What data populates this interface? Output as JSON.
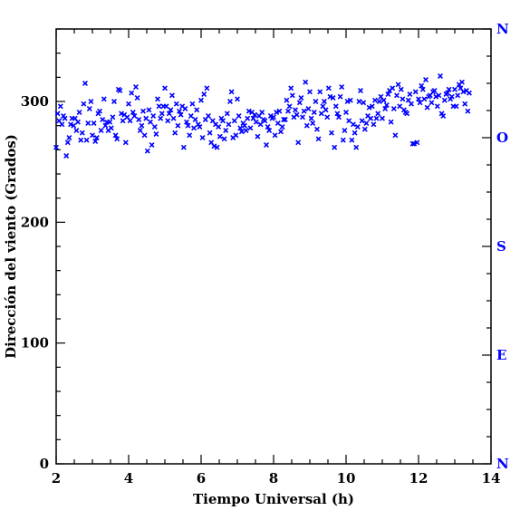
{
  "chart_data": {
    "type": "scatter",
    "xlabel": "Tiempo Universal (h)",
    "ylabel": "Dirección del viento (Grados)",
    "xlim": [
      2,
      14
    ],
    "ylim": [
      0,
      360
    ],
    "x_ticks": [
      2,
      4,
      6,
      8,
      10,
      12,
      14
    ],
    "y_ticks": [
      0,
      100,
      200,
      300
    ],
    "right_axis_labels": [
      {
        "label": "N",
        "value": 360
      },
      {
        "label": "O",
        "value": 270
      },
      {
        "label": "S",
        "value": 180
      },
      {
        "label": "E",
        "value": 90
      },
      {
        "label": "N",
        "value": 0
      }
    ],
    "marker": "x",
    "series_color": "#0000ff",
    "right_axis_color": "#0000ff",
    "points": [
      [
        2.0,
        262
      ],
      [
        2.04,
        290
      ],
      [
        2.08,
        284
      ],
      [
        2.12,
        296
      ],
      [
        2.16,
        281
      ],
      [
        2.2,
        288
      ],
      [
        2.24,
        286
      ],
      [
        2.28,
        255
      ],
      [
        2.32,
        266
      ],
      [
        2.36,
        270
      ],
      [
        2.4,
        281
      ],
      [
        2.44,
        286
      ],
      [
        2.48,
        280
      ],
      [
        2.52,
        286
      ],
      [
        2.56,
        276
      ],
      [
        2.6,
        283
      ],
      [
        2.64,
        291
      ],
      [
        2.68,
        268
      ],
      [
        2.72,
        274
      ],
      [
        2.76,
        298
      ],
      [
        2.8,
        315
      ],
      [
        2.84,
        268
      ],
      [
        2.88,
        282
      ],
      [
        2.92,
        294
      ],
      [
        2.96,
        300
      ],
      [
        3.0,
        272
      ],
      [
        3.04,
        282
      ],
      [
        3.08,
        267
      ],
      [
        3.12,
        270
      ],
      [
        3.16,
        290
      ],
      [
        3.2,
        292
      ],
      [
        3.24,
        276
      ],
      [
        3.28,
        285
      ],
      [
        3.32,
        302
      ],
      [
        3.36,
        280
      ],
      [
        3.4,
        283
      ],
      [
        3.44,
        276
      ],
      [
        3.48,
        283
      ],
      [
        3.52,
        278
      ],
      [
        3.56,
        287
      ],
      [
        3.6,
        300
      ],
      [
        3.64,
        272
      ],
      [
        3.68,
        269
      ],
      [
        3.72,
        310
      ],
      [
        3.76,
        309
      ],
      [
        3.8,
        290
      ],
      [
        3.84,
        284
      ],
      [
        3.88,
        289
      ],
      [
        3.92,
        266
      ],
      [
        3.96,
        287
      ],
      [
        4.0,
        298
      ],
      [
        4.04,
        284
      ],
      [
        4.08,
        307
      ],
      [
        4.12,
        291
      ],
      [
        4.16,
        288
      ],
      [
        4.2,
        312
      ],
      [
        4.24,
        303
      ],
      [
        4.28,
        285
      ],
      [
        4.32,
        276
      ],
      [
        4.36,
        280
      ],
      [
        4.4,
        292
      ],
      [
        4.44,
        272
      ],
      [
        4.48,
        286
      ],
      [
        4.52,
        259
      ],
      [
        4.56,
        293
      ],
      [
        4.6,
        283
      ],
      [
        4.64,
        264
      ],
      [
        4.68,
        288
      ],
      [
        4.72,
        279
      ],
      [
        4.76,
        273
      ],
      [
        4.8,
        302
      ],
      [
        4.84,
        296
      ],
      [
        4.88,
        286
      ],
      [
        4.92,
        290
      ],
      [
        4.96,
        296
      ],
      [
        5.0,
        311
      ],
      [
        5.04,
        296
      ],
      [
        5.08,
        284
      ],
      [
        5.12,
        290
      ],
      [
        5.16,
        293
      ],
      [
        5.2,
        305
      ],
      [
        5.24,
        286
      ],
      [
        5.28,
        274
      ],
      [
        5.32,
        298
      ],
      [
        5.36,
        280
      ],
      [
        5.4,
        292
      ],
      [
        5.44,
        289
      ],
      [
        5.48,
        296
      ],
      [
        5.52,
        262
      ],
      [
        5.56,
        294
      ],
      [
        5.6,
        283
      ],
      [
        5.64,
        280
      ],
      [
        5.68,
        272
      ],
      [
        5.72,
        288
      ],
      [
        5.76,
        298
      ],
      [
        5.8,
        278
      ],
      [
        5.84,
        285
      ],
      [
        5.88,
        293
      ],
      [
        5.92,
        281
      ],
      [
        5.96,
        279
      ],
      [
        6.0,
        301
      ],
      [
        6.04,
        270
      ],
      [
        6.08,
        306
      ],
      [
        6.12,
        285
      ],
      [
        6.16,
        311
      ],
      [
        6.2,
        288
      ],
      [
        6.24,
        274
      ],
      [
        6.28,
        266
      ],
      [
        6.32,
        284
      ],
      [
        6.36,
        263
      ],
      [
        6.4,
        281
      ],
      [
        6.44,
        262
      ],
      [
        6.48,
        279
      ],
      [
        6.52,
        271
      ],
      [
        6.56,
        286
      ],
      [
        6.6,
        284
      ],
      [
        6.64,
        269
      ],
      [
        6.68,
        276
      ],
      [
        6.72,
        290
      ],
      [
        6.76,
        281
      ],
      [
        6.8,
        300
      ],
      [
        6.84,
        308
      ],
      [
        6.88,
        270
      ],
      [
        6.92,
        284
      ],
      [
        6.96,
        272
      ],
      [
        7.0,
        302
      ],
      [
        7.04,
        288
      ],
      [
        7.08,
        278
      ],
      [
        7.12,
        275
      ],
      [
        7.16,
        282
      ],
      [
        7.2,
        280
      ],
      [
        7.24,
        276
      ],
      [
        7.28,
        286
      ],
      [
        7.32,
        292
      ],
      [
        7.36,
        278
      ],
      [
        7.4,
        291
      ],
      [
        7.44,
        286
      ],
      [
        7.48,
        289
      ],
      [
        7.52,
        283
      ],
      [
        7.56,
        271
      ],
      [
        7.6,
        288
      ],
      [
        7.64,
        281
      ],
      [
        7.68,
        291
      ],
      [
        7.72,
        285
      ],
      [
        7.76,
        284
      ],
      [
        7.8,
        264
      ],
      [
        7.84,
        279
      ],
      [
        7.88,
        276
      ],
      [
        7.92,
        288
      ],
      [
        7.96,
        286
      ],
      [
        8.0,
        287
      ],
      [
        8.04,
        272
      ],
      [
        8.08,
        291
      ],
      [
        8.12,
        282
      ],
      [
        8.16,
        292
      ],
      [
        8.2,
        275
      ],
      [
        8.24,
        279
      ],
      [
        8.28,
        285
      ],
      [
        8.32,
        285
      ],
      [
        8.36,
        301
      ],
      [
        8.4,
        292
      ],
      [
        8.44,
        296
      ],
      [
        8.48,
        311
      ],
      [
        8.52,
        305
      ],
      [
        8.56,
        287
      ],
      [
        8.6,
        293
      ],
      [
        8.64,
        289
      ],
      [
        8.68,
        266
      ],
      [
        8.72,
        299
      ],
      [
        8.76,
        303
      ],
      [
        8.8,
        287
      ],
      [
        8.84,
        292
      ],
      [
        8.88,
        316
      ],
      [
        8.92,
        280
      ],
      [
        8.96,
        294
      ],
      [
        9.0,
        308
      ],
      [
        9.04,
        286
      ],
      [
        9.08,
        282
      ],
      [
        9.12,
        291
      ],
      [
        9.16,
        300
      ],
      [
        9.2,
        277
      ],
      [
        9.24,
        269
      ],
      [
        9.28,
        308
      ],
      [
        9.32,
        290
      ],
      [
        9.36,
        296
      ],
      [
        9.4,
        300
      ],
      [
        9.44,
        293
      ],
      [
        9.48,
        287
      ],
      [
        9.52,
        311
      ],
      [
        9.56,
        304
      ],
      [
        9.6,
        274
      ],
      [
        9.64,
        303
      ],
      [
        9.68,
        262
      ],
      [
        9.72,
        296
      ],
      [
        9.76,
        290
      ],
      [
        9.8,
        287
      ],
      [
        9.84,
        304
      ],
      [
        9.88,
        312
      ],
      [
        9.92,
        268
      ],
      [
        9.96,
        276
      ],
      [
        10.0,
        291
      ],
      [
        10.04,
        300
      ],
      [
        10.08,
        284
      ],
      [
        10.12,
        301
      ],
      [
        10.16,
        268
      ],
      [
        10.2,
        281
      ],
      [
        10.24,
        274
      ],
      [
        10.28,
        262
      ],
      [
        10.32,
        279
      ],
      [
        10.36,
        300
      ],
      [
        10.4,
        309
      ],
      [
        10.44,
        284
      ],
      [
        10.48,
        299
      ],
      [
        10.52,
        277
      ],
      [
        10.56,
        282
      ],
      [
        10.6,
        288
      ],
      [
        10.64,
        295
      ],
      [
        10.68,
        286
      ],
      [
        10.72,
        296
      ],
      [
        10.76,
        281
      ],
      [
        10.8,
        301
      ],
      [
        10.84,
        286
      ],
      [
        10.88,
        290
      ],
      [
        10.92,
        300
      ],
      [
        10.96,
        304
      ],
      [
        11.0,
        286
      ],
      [
        11.04,
        301
      ],
      [
        11.08,
        294
      ],
      [
        11.12,
        297
      ],
      [
        11.16,
        306
      ],
      [
        11.2,
        309
      ],
      [
        11.24,
        283
      ],
      [
        11.28,
        311
      ],
      [
        11.32,
        294
      ],
      [
        11.36,
        272
      ],
      [
        11.4,
        305
      ],
      [
        11.44,
        314
      ],
      [
        11.48,
        296
      ],
      [
        11.52,
        310
      ],
      [
        11.56,
        302
      ],
      [
        11.6,
        293
      ],
      [
        11.64,
        291
      ],
      [
        11.68,
        290
      ],
      [
        11.72,
        301
      ],
      [
        11.76,
        306
      ],
      [
        11.8,
        298
      ],
      [
        11.84,
        265
      ],
      [
        11.88,
        265
      ],
      [
        11.92,
        308
      ],
      [
        11.96,
        266
      ],
      [
        12.0,
        302
      ],
      [
        12.04,
        299
      ],
      [
        12.08,
        313
      ],
      [
        12.12,
        310
      ],
      [
        12.16,
        302
      ],
      [
        12.2,
        318
      ],
      [
        12.24,
        295
      ],
      [
        12.28,
        304
      ],
      [
        12.32,
        305
      ],
      [
        12.36,
        299
      ],
      [
        12.4,
        308
      ],
      [
        12.44,
        309
      ],
      [
        12.48,
        304
      ],
      [
        12.52,
        296
      ],
      [
        12.56,
        305
      ],
      [
        12.6,
        321
      ],
      [
        12.64,
        290
      ],
      [
        12.68,
        288
      ],
      [
        12.72,
        301
      ],
      [
        12.76,
        306
      ],
      [
        12.8,
        307
      ],
      [
        12.84,
        310
      ],
      [
        12.88,
        302
      ],
      [
        12.92,
        304
      ],
      [
        12.96,
        296
      ],
      [
        13.0,
        310
      ],
      [
        13.04,
        296
      ],
      [
        13.08,
        305
      ],
      [
        13.12,
        314
      ],
      [
        13.16,
        311
      ],
      [
        13.2,
        316
      ],
      [
        13.24,
        308
      ],
      [
        13.28,
        298
      ],
      [
        13.32,
        309
      ],
      [
        13.36,
        292
      ],
      [
        13.4,
        307
      ]
    ]
  }
}
